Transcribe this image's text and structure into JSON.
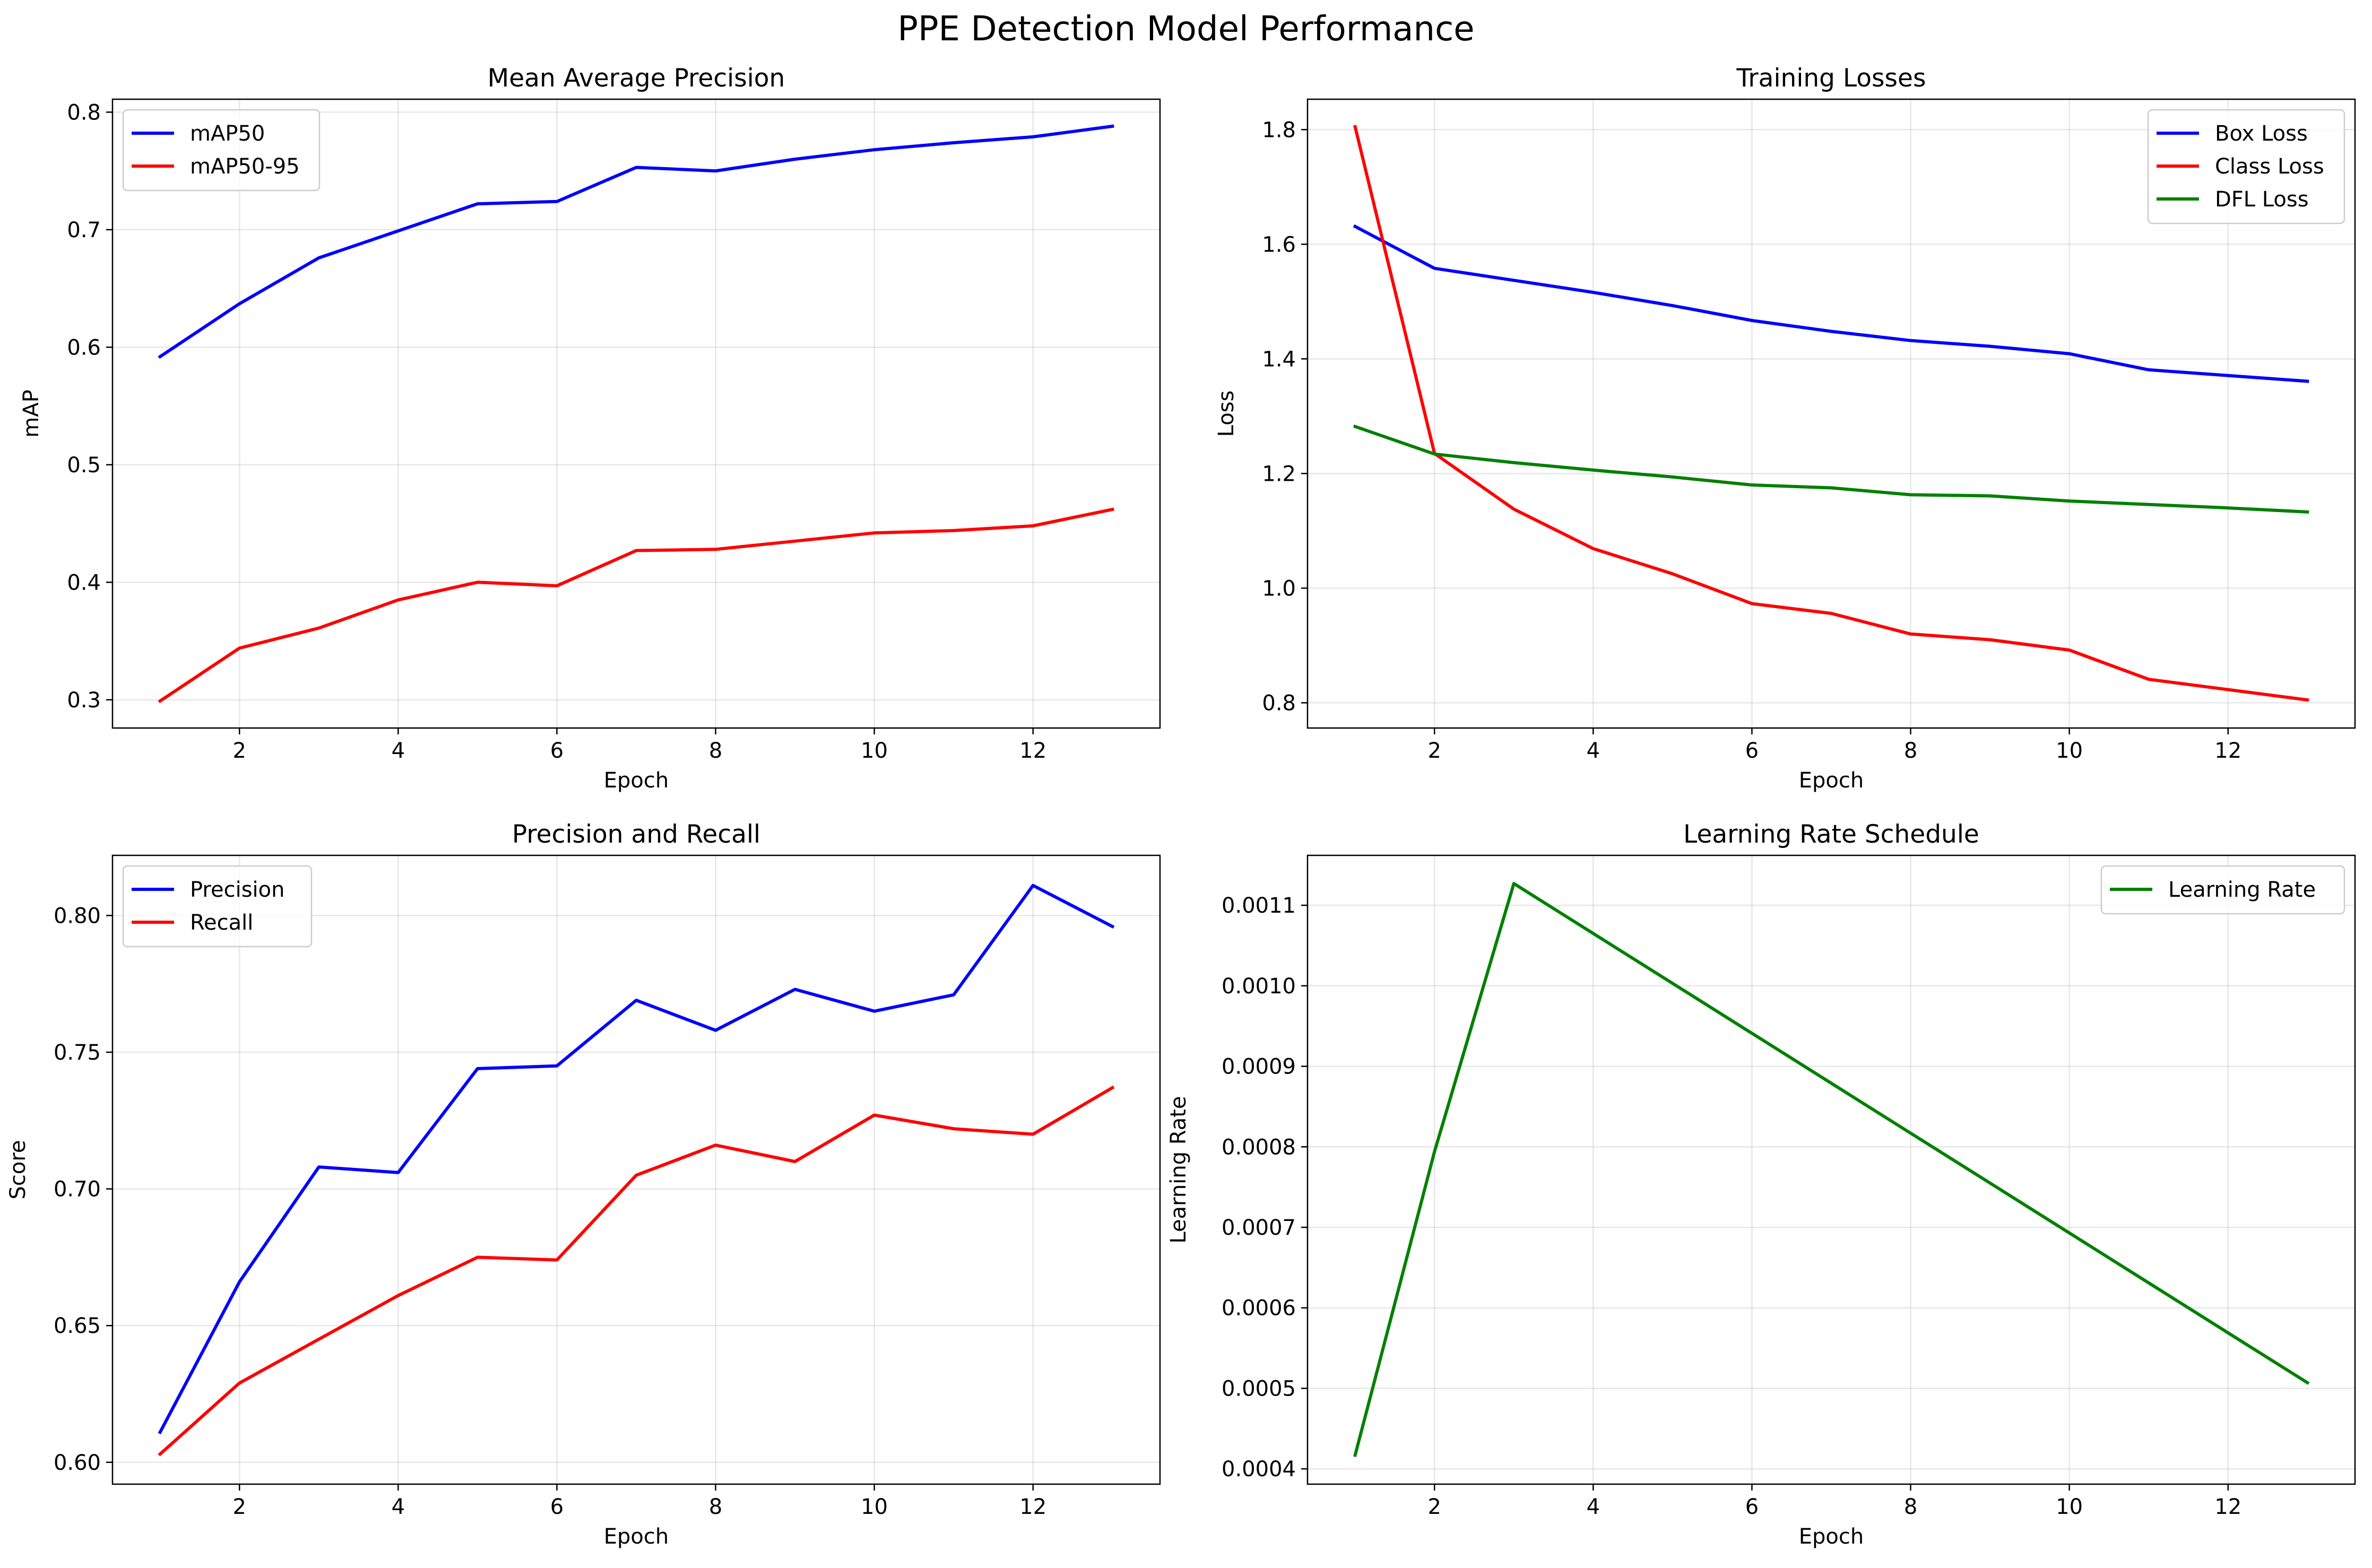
{
  "figure": {
    "title": "PPE Detection Model Performance"
  },
  "chart_data": [
    {
      "type": "line",
      "title": "Mean Average Precision",
      "xlabel": "Epoch",
      "ylabel": "mAP",
      "xlim": [
        0.4,
        13.6
      ],
      "ylim": [
        0.276,
        0.811
      ],
      "xticks": [
        2,
        4,
        6,
        8,
        10,
        12
      ],
      "xtick_labels": [
        "2",
        "4",
        "6",
        "8",
        "10",
        "12"
      ],
      "yticks": [
        0.3,
        0.4,
        0.5,
        0.6,
        0.7,
        0.8
      ],
      "ytick_labels": [
        "0.3",
        "0.4",
        "0.5",
        "0.6",
        "0.7",
        "0.8"
      ],
      "grid": true,
      "legend": "top-left",
      "x": [
        1,
        2,
        3,
        4,
        5,
        6,
        7,
        8,
        9,
        10,
        11,
        12,
        13
      ],
      "series": [
        {
          "name": "mAP50",
          "color": "#0000ff",
          "values": [
            0.592,
            0.637,
            0.676,
            0.699,
            0.722,
            0.724,
            0.753,
            0.75,
            0.76,
            0.768,
            0.774,
            0.779,
            0.788
          ]
        },
        {
          "name": "mAP50-95",
          "color": "#ff0000",
          "values": [
            0.299,
            0.344,
            0.361,
            0.385,
            0.4,
            0.397,
            0.427,
            0.428,
            0.435,
            0.442,
            0.444,
            0.448,
            0.462
          ]
        }
      ]
    },
    {
      "type": "line",
      "title": "Training Losses",
      "xlabel": "Epoch",
      "ylabel": "Loss",
      "xlim": [
        0.4,
        13.6
      ],
      "ylim": [
        0.756,
        1.853
      ],
      "xticks": [
        2,
        4,
        6,
        8,
        10,
        12
      ],
      "xtick_labels": [
        "2",
        "4",
        "6",
        "8",
        "10",
        "12"
      ],
      "yticks": [
        0.8,
        1.0,
        1.2,
        1.4,
        1.6,
        1.8
      ],
      "ytick_labels": [
        "0.8",
        "1.0",
        "1.2",
        "1.4",
        "1.6",
        "1.8"
      ],
      "grid": true,
      "legend": "top-right",
      "x": [
        1,
        2,
        3,
        4,
        5,
        6,
        7,
        8,
        9,
        10,
        11,
        12,
        13
      ],
      "series": [
        {
          "name": "Box Loss",
          "color": "#0000ff",
          "values": [
            1.631,
            1.558,
            1.537,
            1.516,
            1.493,
            1.467,
            1.448,
            1.432,
            1.422,
            1.409,
            1.381,
            1.371,
            1.361
          ]
        },
        {
          "name": "Class Loss",
          "color": "#ff0000",
          "values": [
            1.805,
            1.235,
            1.138,
            1.069,
            1.025,
            0.973,
            0.956,
            0.92,
            0.91,
            0.892,
            0.841,
            0.823,
            0.805
          ]
        },
        {
          "name": "DFL Loss",
          "color": "#008000",
          "values": [
            1.282,
            1.234,
            1.219,
            1.206,
            1.194,
            1.18,
            1.175,
            1.163,
            1.161,
            1.152,
            1.146,
            1.14,
            1.133
          ]
        }
      ]
    },
    {
      "type": "line",
      "title": "Precision and Recall",
      "xlabel": "Epoch",
      "ylabel": "Score",
      "xlim": [
        0.4,
        13.6
      ],
      "ylim": [
        0.592,
        0.822
      ],
      "xticks": [
        2,
        4,
        6,
        8,
        10,
        12
      ],
      "xtick_labels": [
        "2",
        "4",
        "6",
        "8",
        "10",
        "12"
      ],
      "yticks": [
        0.6,
        0.65,
        0.7,
        0.75,
        0.8
      ],
      "ytick_labels": [
        "0.60",
        "0.65",
        "0.70",
        "0.75",
        "0.80"
      ],
      "grid": true,
      "legend": "top-left",
      "x": [
        1,
        2,
        3,
        4,
        5,
        6,
        7,
        8,
        9,
        10,
        11,
        12,
        13
      ],
      "series": [
        {
          "name": "Precision",
          "color": "#0000ff",
          "values": [
            0.611,
            0.666,
            0.708,
            0.706,
            0.744,
            0.745,
            0.769,
            0.758,
            0.773,
            0.765,
            0.771,
            0.811,
            0.796
          ]
        },
        {
          "name": "Recall",
          "color": "#ff0000",
          "values": [
            0.603,
            0.629,
            0.645,
            0.661,
            0.675,
            0.674,
            0.705,
            0.716,
            0.71,
            0.727,
            0.722,
            0.72,
            0.737
          ]
        }
      ]
    },
    {
      "type": "line",
      "title": "Learning Rate Schedule",
      "xlabel": "Epoch",
      "ylabel": "Learning Rate",
      "xlim": [
        0.4,
        13.6
      ],
      "ylim": [
        0.000381,
        0.001162
      ],
      "xticks": [
        2,
        4,
        6,
        8,
        10,
        12
      ],
      "xtick_labels": [
        "2",
        "4",
        "6",
        "8",
        "10",
        "12"
      ],
      "yticks": [
        0.0004,
        0.0005,
        0.0006,
        0.0007,
        0.0008,
        0.0009,
        0.001,
        0.0011
      ],
      "ytick_labels": [
        "0.0004",
        "0.0005",
        "0.0006",
        "0.0007",
        "0.0008",
        "0.0009",
        "0.0010",
        "0.0011"
      ],
      "grid": true,
      "legend": "top-right",
      "x": [
        1,
        2,
        3,
        4,
        5,
        6,
        7,
        8,
        9,
        10,
        11,
        12,
        13
      ],
      "series": [
        {
          "name": "Learning Rate",
          "color": "#008000",
          "values": [
            0.000417,
            0.000794,
            0.001127,
            0.001065,
            0.001003,
            0.000941,
            0.000879,
            0.000817,
            0.000755,
            0.000693,
            0.000631,
            0.000569,
            0.000507
          ]
        }
      ]
    }
  ]
}
